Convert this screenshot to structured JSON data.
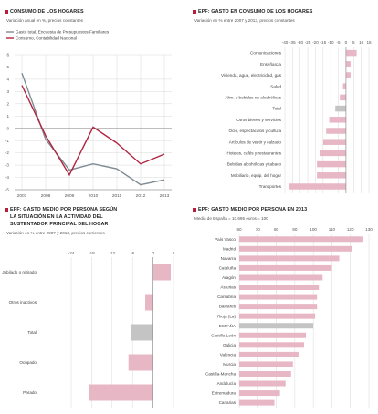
{
  "colors": {
    "pink": "#e8b7c6",
    "gray": "#c4c4c4",
    "crimson": "#b0243f",
    "slate": "#7f8c94",
    "grid": "#d8d8d8",
    "bullet": "#b71c3a"
  },
  "titles": {
    "p1": "CONSUMO DE LOS HOGARES",
    "p2": "EPF: GASTO EN CONSUMO DE LOS HOGARES",
    "p3_line1": "EPF: GASTO MEDIO POR PERSONA SEGÚN",
    "p3_line2": "LA SITUACIÓN EN LA ACTIVIDAD DEL",
    "p3_line3": "SUSTENTADOR PRINCIPAL DEL HOGAR",
    "p4": "EPF: GASTO MEDIO POR PERSONA EN 2013"
  },
  "subtitles": {
    "p1": "Variación anual en %, precios constantes",
    "p2": "Variación en % entre 2007 y 2013, precios constantes",
    "p3": "Variación en % entre 2007 y 2013, precios corrientes",
    "p4_line1": "Media de España = 10.695 euros = 100"
  },
  "chart_data": [
    {
      "id": "consumo",
      "type": "line",
      "x": [
        "2007",
        "2008",
        "2009",
        "2010",
        "2011",
        "2012",
        "2013"
      ],
      "ylim": [
        -5,
        6
      ],
      "yticks": [
        -5,
        -4,
        -3,
        -2,
        -1,
        0,
        1,
        2,
        3,
        4,
        5,
        6
      ],
      "series": [
        {
          "name": "Gasto total, Encuesta de Presupuestos Familiares",
          "color": "#7f8c94",
          "values": [
            4.5,
            -0.9,
            -3.4,
            -2.9,
            -3.3,
            -4.6,
            -4.2
          ]
        },
        {
          "name": "Consumo, Contabilidad Nacional",
          "color": "#b0243f",
          "values": [
            3.5,
            -0.6,
            -3.8,
            0.1,
            -1.2,
            -2.9,
            -2.1
          ]
        }
      ]
    },
    {
      "id": "grupos",
      "type": "bar",
      "orientation": "horizontal",
      "xlim": [
        -40,
        15
      ],
      "xticks": [
        -40,
        -35,
        -30,
        -25,
        -20,
        -15,
        -10,
        -5,
        0,
        5,
        10,
        15
      ],
      "categories": [
        "Comunicaciones",
        "Enseñanza",
        "Vivienda, agua, electricidad, gas",
        "Salud",
        "Alim. y bebidas no alcohólicas",
        "Total",
        "Otros bienes y servicios",
        "Ocio, espectáculos y cultura",
        "Artículos de vestir y calzado",
        "Hoteles, cafés y restaurantes",
        "Bebidas alcohólicas y tabaco",
        "Mobiliario, equip. del hogar",
        "Transportes"
      ],
      "values": [
        7,
        3,
        3,
        -2,
        -4,
        -7,
        -11,
        -13,
        -15,
        -17,
        -19,
        -19,
        -37
      ],
      "highlight": [
        "Total"
      ]
    },
    {
      "id": "actividad",
      "type": "bar",
      "orientation": "horizontal",
      "xlim": [
        -24,
        6
      ],
      "xticks": [
        -24,
        -18,
        -12,
        -6,
        0,
        6
      ],
      "categories": [
        "Jubilado o retirado",
        "Otros inactivos",
        "Total",
        "Ocupado",
        "Parado"
      ],
      "values": [
        5.2,
        -2.3,
        -6.6,
        -7.2,
        -18.8
      ],
      "highlight": [
        "Total"
      ]
    },
    {
      "id": "ccaa",
      "type": "bar",
      "orientation": "horizontal",
      "xlim": [
        60,
        130
      ],
      "xticks": [
        60,
        70,
        80,
        90,
        100,
        110,
        120,
        130
      ],
      "categories": [
        "País Vasco",
        "Madrid",
        "Navarra",
        "Cataluña",
        "Aragón",
        "Asturias",
        "Cantabria",
        "Baleares",
        "Rioja (La)",
        "ESPAÑA",
        "Castilla-León",
        "Galicia",
        "Valencia",
        "Murcia",
        "Castilla-Mancha",
        "Andalucía",
        "Extremadura",
        "Canarias"
      ],
      "values": [
        127,
        121,
        114,
        110,
        105,
        103,
        102,
        102,
        101,
        100,
        96,
        95,
        92,
        89,
        88,
        85,
        82,
        79
      ],
      "highlight": [
        "ESPAÑA"
      ]
    }
  ]
}
